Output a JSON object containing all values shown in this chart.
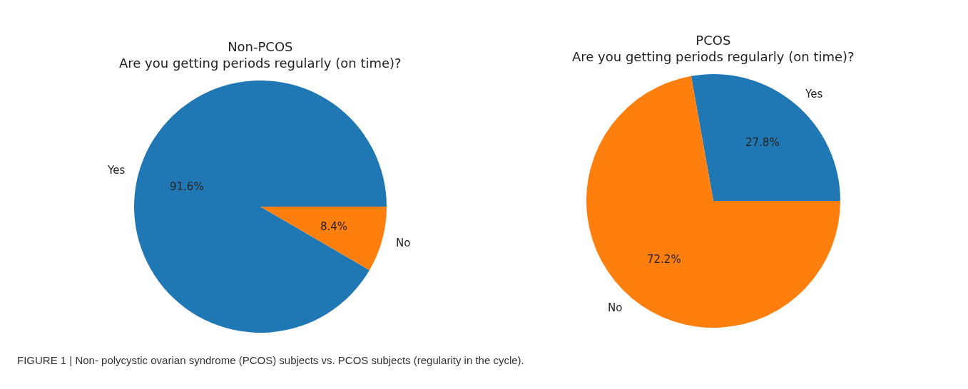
{
  "chart_data": [
    {
      "type": "pie",
      "title": "Non-PCOS\nAre you getting periods regularly (on time)?",
      "categories": [
        "Yes",
        "No"
      ],
      "values": [
        91.6,
        8.4
      ],
      "value_labels": [
        "91.6%",
        "8.4%"
      ],
      "colors": [
        "#1f77b4",
        "#ff7f0e"
      ],
      "legend": false,
      "annotations": [
        "FIGURE 1 | Non- polycystic ovarian syndrome (PCOS) subjects vs. PCOS subjects (regularity in the cycle)."
      ]
    },
    {
      "type": "pie",
      "title": "PCOS\nAre you getting periods regularly (on time)?",
      "categories": [
        "Yes",
        "No"
      ],
      "values": [
        27.8,
        72.2
      ],
      "value_labels": [
        "27.8%",
        "72.2%"
      ],
      "colors": [
        "#1f77b4",
        "#ff7f0e"
      ],
      "legend": false
    }
  ]
}
